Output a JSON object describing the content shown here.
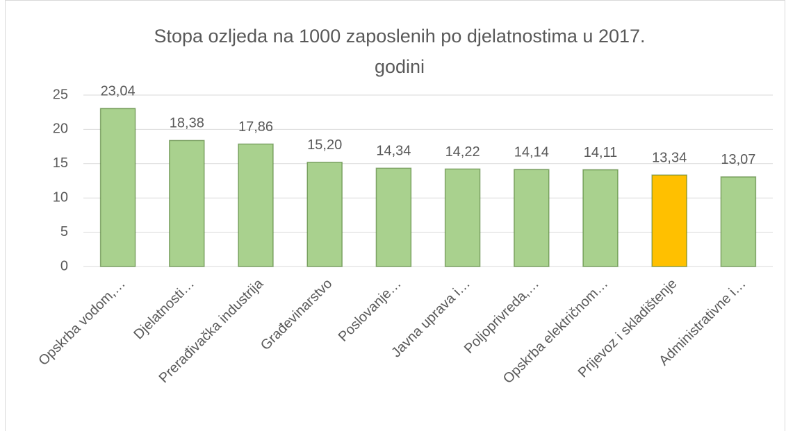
{
  "chart_data": {
    "type": "bar",
    "title": "Stopa ozljeda na 1000 zaposlenih po djelatnostima u 2017. godini",
    "categories": [
      "Opskrba vodom,…",
      "Djelatnosti…",
      "Prerađivačka industrija",
      "Građevinarstvo",
      "Poslovanje…",
      "Javna uprava i…",
      "Poljoprivreda,…",
      "Opskrba električnom…",
      "Prijevoz i skladištenje",
      "Administrativne i…"
    ],
    "values": [
      23.04,
      18.38,
      17.86,
      15.2,
      14.34,
      14.22,
      14.14,
      14.11,
      13.34,
      13.07
    ],
    "value_labels": [
      "23,04",
      "18,38",
      "17,86",
      "15,20",
      "14,34",
      "14,22",
      "14,14",
      "14,11",
      "13,34",
      "13,07"
    ],
    "colors": [
      "#a9d18e",
      "#a9d18e",
      "#a9d18e",
      "#a9d18e",
      "#a9d18e",
      "#a9d18e",
      "#a9d18e",
      "#a9d18e",
      "#ffc000",
      "#a9d18e"
    ],
    "ylim": [
      0,
      25
    ],
    "yticks": [
      0,
      5,
      10,
      15,
      20,
      25
    ],
    "grid": true
  }
}
